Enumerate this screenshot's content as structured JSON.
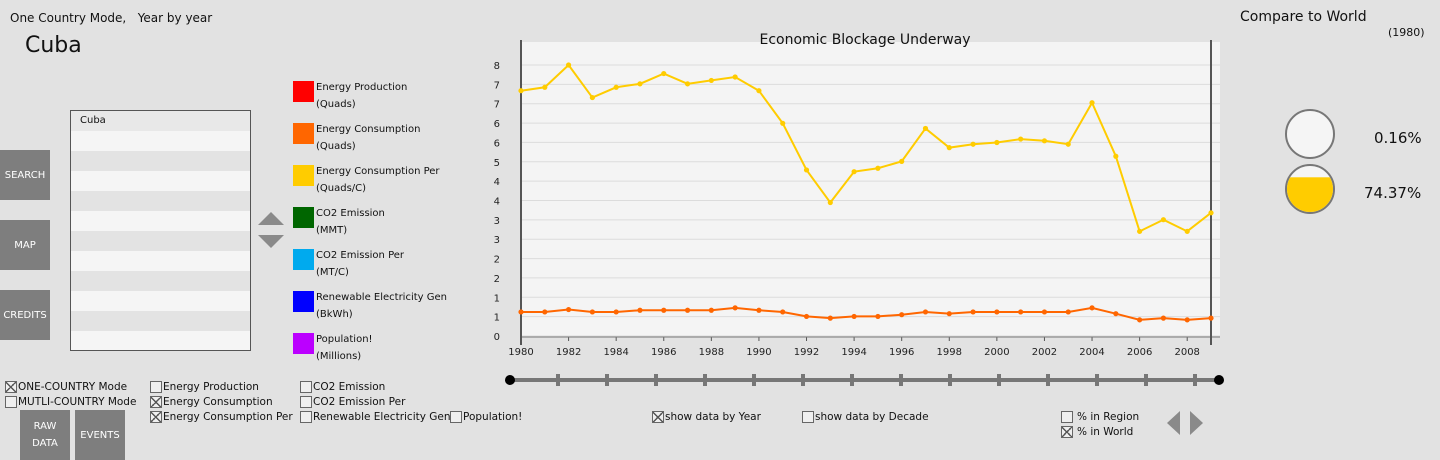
{
  "header": {
    "mode_label": "One Country Mode,   Year by year",
    "country": "Cuba",
    "compare_title": "Compare to World",
    "compare_year": "(1980)"
  },
  "sidebar": {
    "search": "SEARCH",
    "map": "MAP",
    "credits": "CREDITS"
  },
  "country_list": [
    "Cuba",
    "",
    "",
    "",
    "",
    "",
    "",
    "",
    "",
    "",
    "",
    ""
  ],
  "legend": [
    {
      "line1": "Energy Production",
      "line2": "(Quads)",
      "color": "#ff0000"
    },
    {
      "line1": "Energy Consumption",
      "line2": "(Quads)",
      "color": "#ff6600"
    },
    {
      "line1": "Energy Consumption Per",
      "line2": "(Quads/C)",
      "color": "#ffcc00"
    },
    {
      "line1": "CO2 Emission",
      "line2": "(MMT)",
      "color": "#006600"
    },
    {
      "line1": "CO2 Emission Per",
      "line2": "(MT/C)",
      "color": "#00aaee"
    },
    {
      "line1": "Renewable Electricity Gen",
      "line2": "(BkWh)",
      "color": "#0000ff"
    },
    {
      "line1": "Population!",
      "line2": "(Millions)",
      "color": "#bb00ff"
    }
  ],
  "gauges": [
    {
      "label": "0.16%",
      "fraction": 0.0016,
      "color": "#ffcc00"
    },
    {
      "label": "74.37%",
      "fraction": 0.7437,
      "color": "#ffcc00"
    }
  ],
  "controls": {
    "one_country": {
      "label": "ONE-COUNTRY Mode",
      "checked": true
    },
    "multi_country": {
      "label": "MUTLI-COUNTRY Mode",
      "checked": false
    },
    "energy_production": {
      "label": "Energy Production",
      "checked": false
    },
    "energy_consumption": {
      "label": "Energy Consumption",
      "checked": true
    },
    "energy_consumption_per": {
      "label": "Energy Consumption Per",
      "checked": true
    },
    "co2_emission": {
      "label": "CO2 Emission",
      "checked": false
    },
    "co2_emission_per": {
      "label": "CO2 Emission Per",
      "checked": false
    },
    "renewable": {
      "label": "Renewable Electricity Gen",
      "checked": false
    },
    "population": {
      "label": "Population!",
      "checked": false
    },
    "by_year": {
      "label": "show data by Year",
      "checked": true
    },
    "by_decade": {
      "label": "show data by Decade",
      "checked": false
    },
    "in_region": {
      "label": "% in Region",
      "checked": false
    },
    "in_world": {
      "label": "% in World",
      "checked": true
    },
    "raw_data_line1": "RAW",
    "raw_data_line2": "DATA",
    "events": "EVENTS"
  },
  "chart_data": {
    "type": "line",
    "title": "Economic Blockage Underway",
    "x": [
      1980,
      1981,
      1982,
      1983,
      1984,
      1985,
      1986,
      1987,
      1988,
      1989,
      1990,
      1991,
      1992,
      1993,
      1994,
      1995,
      1996,
      1997,
      1998,
      1999,
      2000,
      2001,
      2002,
      2003,
      2004,
      2005,
      2006,
      2007,
      2008,
      2009
    ],
    "x_ticks": [
      1980,
      1982,
      1984,
      1986,
      1988,
      1990,
      1992,
      1994,
      1996,
      1998,
      2000,
      2002,
      2004,
      2006,
      2008
    ],
    "y_ticks": [
      "0",
      "1",
      "1",
      "2",
      "2",
      "3",
      "3",
      "4",
      "4",
      "5",
      "6",
      "6",
      "7",
      "7",
      "8"
    ],
    "ylim": [
      0,
      8.6
    ],
    "xlim": [
      1980,
      2009
    ],
    "series": [
      {
        "name": "Energy Consumption Per",
        "color": "#ffcc00",
        "values": [
          7.18,
          7.28,
          7.93,
          6.98,
          7.28,
          7.38,
          7.68,
          7.38,
          7.48,
          7.58,
          7.18,
          6.23,
          4.87,
          3.92,
          4.82,
          4.92,
          5.12,
          6.08,
          5.52,
          5.62,
          5.67,
          5.77,
          5.72,
          5.62,
          6.83,
          5.27,
          3.08,
          3.42,
          3.08,
          3.62
        ]
      },
      {
        "name": "Energy Consumption",
        "color": "#ff6600",
        "values": [
          0.73,
          0.73,
          0.8,
          0.73,
          0.73,
          0.78,
          0.78,
          0.78,
          0.78,
          0.85,
          0.78,
          0.73,
          0.6,
          0.55,
          0.6,
          0.6,
          0.65,
          0.73,
          0.68,
          0.73,
          0.73,
          0.73,
          0.73,
          0.73,
          0.85,
          0.68,
          0.5,
          0.55,
          0.5,
          0.55
        ]
      }
    ],
    "timeline": {
      "start": 1980,
      "end": 2009,
      "ticks": [
        1982,
        1986,
        1990,
        1994,
        1998,
        2002,
        2006,
        2010,
        2014,
        2018,
        2022,
        2026,
        2030,
        2034
      ]
    }
  }
}
